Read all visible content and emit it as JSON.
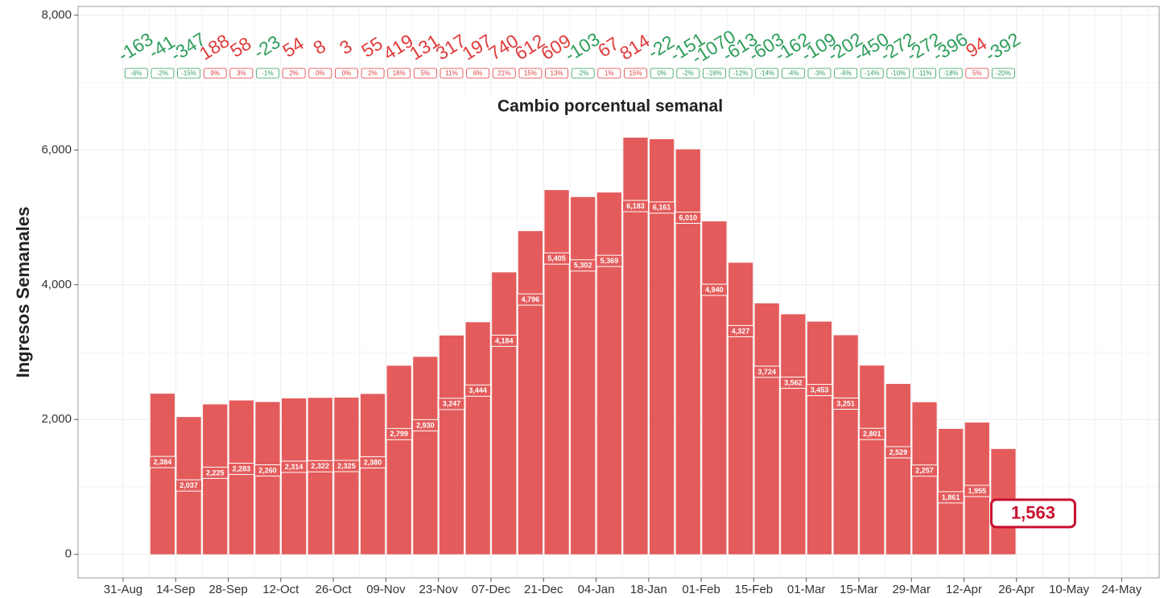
{
  "chart_data": {
    "type": "bar",
    "title": "Cambio porcentual semanal",
    "y_label": "Ingresos Semanales",
    "x": [
      "07-Sep",
      "14-Sep",
      "21-Sep",
      "28-Sep",
      "05-Oct",
      "12-Oct",
      "19-Oct",
      "26-Oct",
      "02-Nov",
      "09-Nov",
      "16-Nov",
      "23-Nov",
      "30-Nov",
      "07-Dec",
      "14-Dec",
      "21-Dec",
      "28-Dec",
      "04-Jan",
      "11-Jan",
      "18-Jan",
      "25-Jan",
      "01-Feb",
      "08-Feb",
      "15-Feb",
      "22-Feb",
      "01-Mar",
      "08-Mar",
      "15-Mar",
      "22-Mar",
      "29-Mar",
      "05-Apr",
      "12-Apr",
      "19-Apr"
    ],
    "values": [
      2384,
      2037,
      2225,
      2283,
      2260,
      2314,
      2322,
      2325,
      2380,
      2799,
      2930,
      3247,
      3444,
      4184,
      4796,
      5405,
      5302,
      5369,
      6183,
      6161,
      6010,
      4940,
      4327,
      3724,
      3562,
      3453,
      3251,
      2801,
      2529,
      2257,
      1861,
      1955,
      1563
    ],
    "value_labels": [
      "2,384",
      "2,037",
      "2,225",
      "2,283",
      "2,260",
      "2,314",
      "2,322",
      "2,325",
      "2,380",
      "2,799",
      "2,930",
      "3,247",
      "3,444",
      "4,184",
      "4,796",
      "5,405",
      "5,302",
      "5,369",
      "6,183",
      "6,161",
      "6,010",
      "4,940",
      "4,327",
      "3,724",
      "3,562",
      "3,453",
      "3,251",
      "2,801",
      "2,529",
      "2,257",
      "1,861",
      "1,955",
      "1,563"
    ],
    "color": "#e45b5b",
    "highlight_color": "#c8102e",
    "changes": {
      "x": [
        "31-Aug",
        "07-Sep",
        "14-Sep",
        "21-Sep",
        "28-Sep",
        "05-Oct",
        "12-Oct",
        "19-Oct",
        "26-Oct",
        "02-Nov",
        "09-Nov",
        "16-Nov",
        "23-Nov",
        "30-Nov",
        "07-Dec",
        "14-Dec",
        "21-Dec",
        "28-Dec",
        "04-Jan",
        "11-Jan",
        "18-Jan",
        "25-Jan",
        "01-Feb",
        "08-Feb",
        "15-Feb",
        "22-Feb",
        "01-Mar",
        "08-Mar",
        "15-Mar",
        "22-Mar",
        "29-Mar",
        "05-Apr",
        "12-Apr",
        "19-Apr"
      ],
      "values": [
        -163,
        -41,
        -347,
        188,
        58,
        -23,
        54,
        8,
        3,
        55,
        419,
        131,
        317,
        197,
        740,
        612,
        609,
        -103,
        67,
        814,
        -22,
        -151,
        -1070,
        -613,
        -603,
        -162,
        -109,
        -202,
        -450,
        -272,
        -272,
        -396,
        94,
        -392
      ],
      "pct": [
        -6,
        -2,
        -15,
        9,
        3,
        -1,
        2,
        0,
        0,
        2,
        18,
        5,
        11,
        6,
        21,
        15,
        13,
        -2,
        1,
        15,
        0,
        -2,
        -18,
        -12,
        -14,
        -4,
        -3,
        -6,
        -14,
        -10,
        -11,
        -18,
        5,
        -20
      ],
      "pct_labels": [
        "-6%",
        "-2%",
        "-15%",
        "9%",
        "3%",
        "-1%",
        "2%",
        "0%",
        "0%",
        "2%",
        "18%",
        "5%",
        "11%",
        "6%",
        "21%",
        "15%",
        "13%",
        "-2%",
        "1%",
        "15%",
        "0%",
        "-2%",
        "-18%",
        "-12%",
        "-14%",
        "-4%",
        "-3%",
        "-6%",
        "-14%",
        "-10%",
        "-11%",
        "-18%",
        "5%",
        "-20%"
      ],
      "pos_color": "#e03a3a",
      "neg_color": "#2e9e5b"
    },
    "xlim": [
      "19-Aug",
      "03-Jun"
    ],
    "xticks": [
      "31-Aug",
      "14-Sep",
      "28-Sep",
      "12-Oct",
      "26-Oct",
      "09-Nov",
      "23-Nov",
      "07-Dec",
      "21-Dec",
      "04-Jan",
      "18-Jan",
      "01-Feb",
      "15-Feb",
      "01-Mar",
      "15-Mar",
      "29-Mar",
      "12-Apr",
      "26-Apr",
      "10-May",
      "24-May"
    ],
    "ylim": [
      -350,
      8130
    ],
    "yticks": [
      {
        "value": 0,
        "label": "0"
      },
      {
        "value": 2000,
        "label": "2,000"
      },
      {
        "value": 4000,
        "label": "4,000"
      },
      {
        "value": 6000,
        "label": "6,000"
      },
      {
        "value": 8000,
        "label": "8,000"
      }
    ],
    "grid": true
  }
}
